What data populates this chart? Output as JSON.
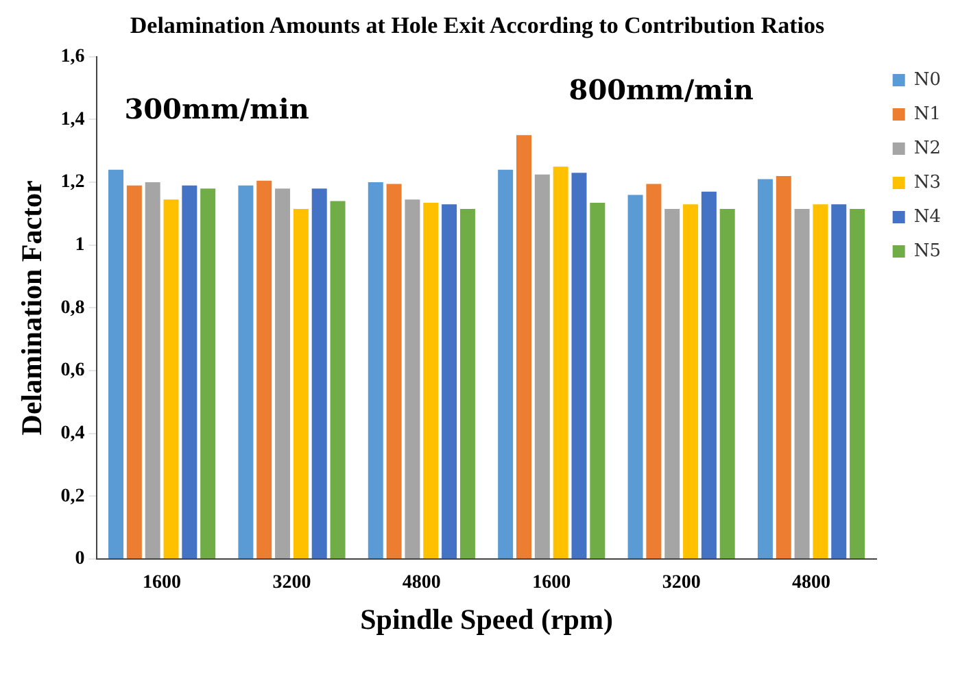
{
  "chart_data": {
    "type": "bar",
    "title": "Delamination Amounts at Hole Exit According to Contribution Ratios",
    "xlabel": "Spindle Speed (rpm)",
    "ylabel": "Delamination Factor",
    "categories": [
      "1600",
      "3200",
      "4800",
      "1600",
      "3200",
      "4800"
    ],
    "series": [
      {
        "name": "N0",
        "color": "#5b9bd5",
        "values": [
          1.24,
          1.19,
          1.2,
          1.24,
          1.16,
          1.21
        ]
      },
      {
        "name": "N1",
        "color": "#ed7d31",
        "values": [
          1.19,
          1.205,
          1.195,
          1.35,
          1.195,
          1.22
        ]
      },
      {
        "name": "N2",
        "color": "#a5a5a5",
        "values": [
          1.2,
          1.18,
          1.145,
          1.225,
          1.115,
          1.115
        ]
      },
      {
        "name": "N3",
        "color": "#ffc000",
        "values": [
          1.145,
          1.115,
          1.135,
          1.25,
          1.13,
          1.13
        ]
      },
      {
        "name": "N4",
        "color": "#4472c4",
        "values": [
          1.19,
          1.18,
          1.13,
          1.23,
          1.17,
          1.13
        ]
      },
      {
        "name": "N5",
        "color": "#70ad47",
        "values": [
          1.18,
          1.14,
          1.115,
          1.135,
          1.115,
          1.115
        ]
      }
    ],
    "ylim": [
      0,
      1.6
    ],
    "yticks": [
      {
        "value": 0,
        "label": "0"
      },
      {
        "value": 0.2,
        "label": "0,2"
      },
      {
        "value": 0.4,
        "label": "0,4"
      },
      {
        "value": 0.6,
        "label": "0,6"
      },
      {
        "value": 0.8,
        "label": "0,8"
      },
      {
        "value": 1,
        "label": "1"
      },
      {
        "value": 1.2,
        "label": "1,2"
      },
      {
        "value": 1.4,
        "label": "1,4"
      },
      {
        "value": 1.6,
        "label": "1,6"
      }
    ],
    "annotations": [
      "300mm/min",
      "800mm/min"
    ],
    "grid": false,
    "legend": "top right"
  }
}
